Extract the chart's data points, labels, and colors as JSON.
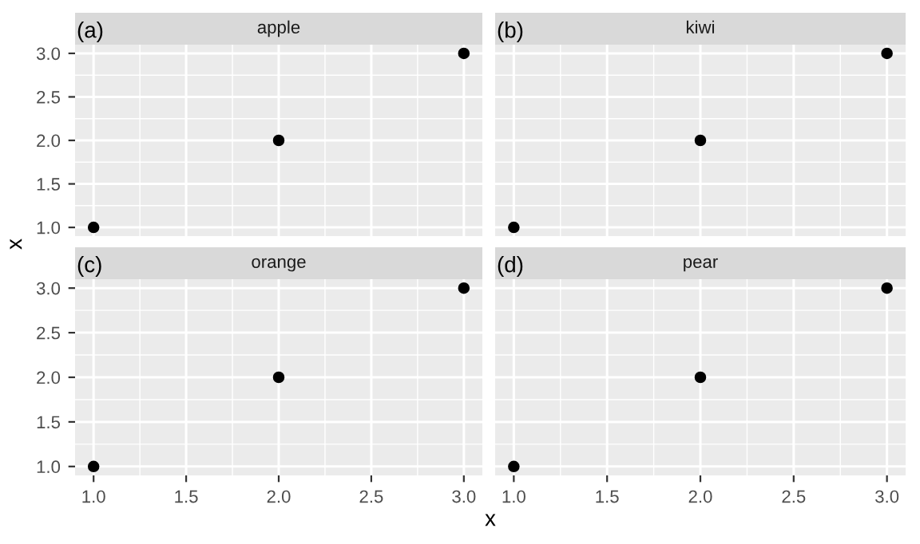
{
  "chart_data": [
    {
      "type": "scatter",
      "title": "apple",
      "ylabel": "x",
      "annotations": [
        "(a)"
      ],
      "x": [
        1,
        2,
        3
      ],
      "values": [
        1,
        2,
        3
      ],
      "color": "#000000",
      "marker": "circle",
      "xlim": [
        0.9,
        3.1
      ],
      "ylim": [
        0.9,
        3.1
      ],
      "xticks": [
        {
          "value": 1,
          "label": null
        },
        {
          "value": 1.5,
          "label": null
        },
        {
          "value": 2,
          "label": null
        },
        {
          "value": 2.5,
          "label": null
        },
        {
          "value": 3,
          "label": null
        }
      ],
      "yticks": [
        {
          "value": 1,
          "label": "1.0"
        },
        {
          "value": 1.5,
          "label": "1.5"
        },
        {
          "value": 2,
          "label": "2.0"
        },
        {
          "value": 2.5,
          "label": "2.5"
        },
        {
          "value": 3,
          "label": "3.0"
        }
      ],
      "grid": true,
      "tick_labels": "y"
    },
    {
      "type": "scatter",
      "title": "kiwi",
      "annotations": [
        "(b)"
      ],
      "x": [
        1,
        2,
        3
      ],
      "values": [
        1,
        2,
        3
      ],
      "color": "#000000",
      "marker": "circle",
      "xlim": [
        0.9,
        3.1
      ],
      "ylim": [
        0.9,
        3.1
      ],
      "xticks": [
        {
          "value": 1,
          "label": null
        },
        {
          "value": 1.5,
          "label": null
        },
        {
          "value": 2,
          "label": null
        },
        {
          "value": 2.5,
          "label": null
        },
        {
          "value": 3,
          "label": null
        }
      ],
      "yticks": [
        {
          "value": 1,
          "label": null
        },
        {
          "value": 1.5,
          "label": null
        },
        {
          "value": 2,
          "label": null
        },
        {
          "value": 2.5,
          "label": null
        },
        {
          "value": 3,
          "label": null
        }
      ],
      "grid": true,
      "tick_labels": false
    },
    {
      "type": "scatter",
      "title": "orange",
      "xlabel": "x",
      "annotations": [
        "(c)"
      ],
      "x": [
        1,
        2,
        3
      ],
      "values": [
        1,
        2,
        3
      ],
      "color": "#000000",
      "marker": "circle",
      "xlim": [
        0.9,
        3.1
      ],
      "ylim": [
        0.9,
        3.1
      ],
      "xticks": [
        {
          "value": 1,
          "label": "1.0"
        },
        {
          "value": 1.5,
          "label": "1.5"
        },
        {
          "value": 2,
          "label": "2.0"
        },
        {
          "value": 2.5,
          "label": "2.5"
        },
        {
          "value": 3,
          "label": "3.0"
        }
      ],
      "yticks": [
        {
          "value": 1,
          "label": "1.0"
        },
        {
          "value": 1.5,
          "label": "1.5"
        },
        {
          "value": 2,
          "label": "2.0"
        },
        {
          "value": 2.5,
          "label": "2.5"
        },
        {
          "value": 3,
          "label": "3.0"
        }
      ],
      "grid": true
    },
    {
      "type": "scatter",
      "title": "pear",
      "annotations": [
        "(d)"
      ],
      "x": [
        1,
        2,
        3
      ],
      "values": [
        1,
        2,
        3
      ],
      "color": "#000000",
      "marker": "circle",
      "xlim": [
        0.9,
        3.1
      ],
      "ylim": [
        0.9,
        3.1
      ],
      "xticks": [
        {
          "value": 1,
          "label": "1.0"
        },
        {
          "value": 1.5,
          "label": "1.5"
        },
        {
          "value": 2,
          "label": "2.0"
        },
        {
          "value": 2.5,
          "label": "2.5"
        },
        {
          "value": 3,
          "label": "3.0"
        }
      ],
      "yticks": [
        {
          "value": 1,
          "label": null
        },
        {
          "value": 1.5,
          "label": null
        },
        {
          "value": 2,
          "label": null
        },
        {
          "value": 2.5,
          "label": null
        },
        {
          "value": 3,
          "label": null
        }
      ],
      "grid": true,
      "tick_labels": "x"
    }
  ]
}
